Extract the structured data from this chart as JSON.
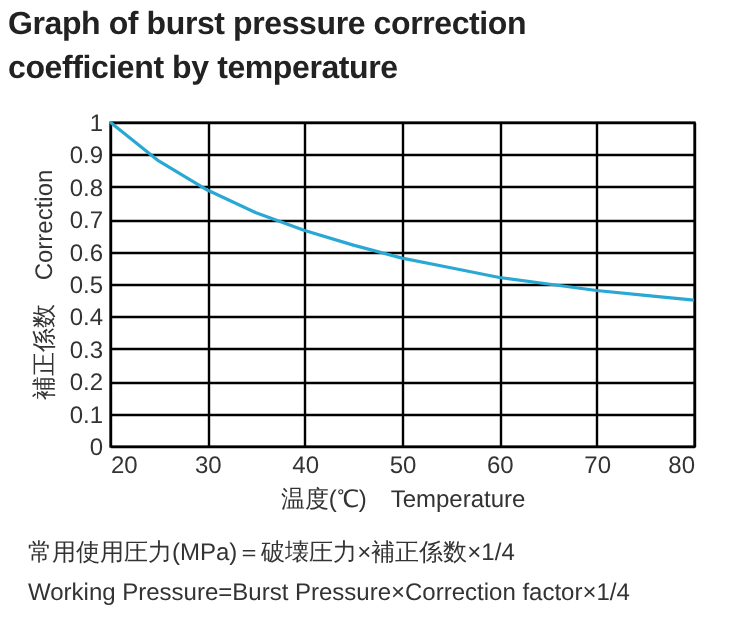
{
  "chart_data": {
    "type": "line",
    "title": "Graph of burst pressure correction coefficient by temperature",
    "xlabel": "温度(℃)　Temperature",
    "ylabel": "補正係数　Correction",
    "x": [
      20,
      25,
      30,
      35,
      40,
      45,
      50,
      55,
      60,
      65,
      70,
      75,
      80
    ],
    "series": [
      {
        "color": "#2aa8d4",
        "values": [
          1.0,
          0.88,
          0.79,
          0.72,
          0.665,
          0.62,
          0.58,
          0.55,
          0.52,
          0.5,
          0.48,
          0.465,
          0.45
        ]
      }
    ],
    "xlim": [
      20,
      80
    ],
    "xticks": [
      20,
      30,
      40,
      50,
      60,
      70,
      80
    ],
    "ylim": [
      0,
      1
    ],
    "yticks": [
      0,
      0.1,
      0.2,
      0.3,
      0.4,
      0.5,
      0.6,
      0.7,
      0.8,
      0.9,
      1
    ],
    "grid": true,
    "annotations": [
      "常用使用圧力(MPa)＝破壊圧力×補正係数×1/4",
      "Working Pressure=Burst Pressure×Correction factor×1/4"
    ]
  }
}
